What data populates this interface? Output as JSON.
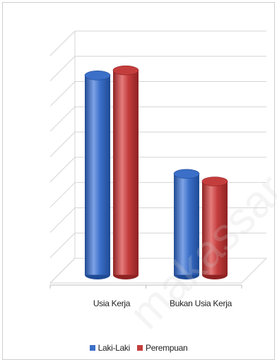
{
  "chart_data": {
    "type": "bar",
    "categories": [
      "Usia Kerja",
      "Bukan Usia Kerja"
    ],
    "series": [
      {
        "name": "Laki-Laki",
        "values": [
          79,
          40
        ]
      },
      {
        "name": "Perempuan",
        "values": [
          81,
          37
        ]
      }
    ],
    "ylim": [
      0,
      90
    ],
    "grid": true,
    "y_tick_labels_visible": false,
    "legend_position": "bottom",
    "bar_style": "3d-cylinder",
    "colors": [
      "#3b6fc8",
      "#c43d3d"
    ]
  },
  "legend": {
    "items": [
      {
        "label": "Laki-Laki",
        "color": "#3b6fc8"
      },
      {
        "label": "Perempuan",
        "color": "#c43d3d"
      }
    ]
  },
  "watermark": {
    "text": "makassar"
  }
}
